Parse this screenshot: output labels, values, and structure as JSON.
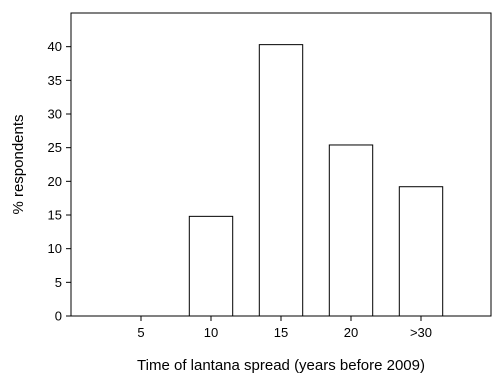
{
  "chart_data": {
    "type": "bar",
    "title": "",
    "xlabel": "Time of lantana spread (years before 2009)",
    "ylabel": "% respondents",
    "categories": [
      "5",
      "10",
      "15",
      "20",
      ">30"
    ],
    "values": [
      0,
      14.8,
      40.3,
      25.4,
      19.2
    ],
    "ylim": [
      0,
      45
    ],
    "yticks": [
      0,
      5,
      10,
      15,
      20,
      25,
      30,
      35,
      40
    ],
    "grid": false,
    "legend": "none",
    "colors": {
      "bar_fill": "#ffffff",
      "bar_stroke": "#000000",
      "axis": "#000000",
      "text": "#000000"
    }
  }
}
